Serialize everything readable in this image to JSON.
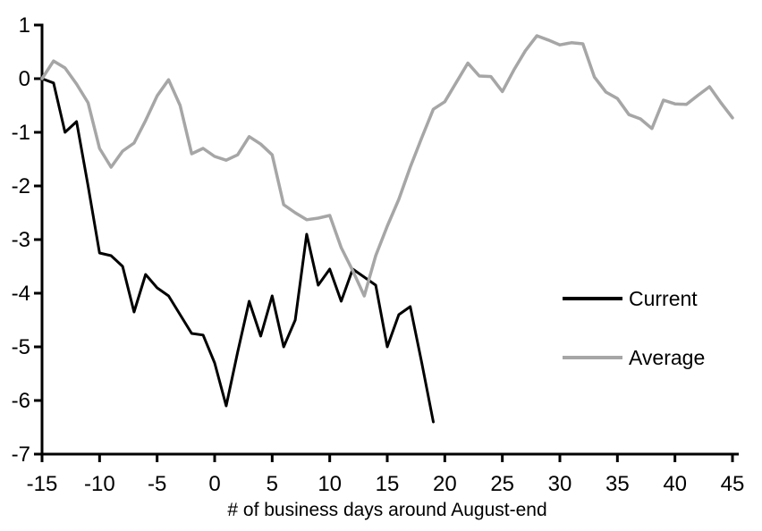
{
  "chart_data": {
    "type": "line",
    "title": "",
    "xlabel": "# of business days around August-end",
    "ylabel": "",
    "xlim": [
      -15,
      45
    ],
    "ylim": [
      -7,
      1
    ],
    "x_ticks": [
      -15,
      -10,
      -5,
      0,
      5,
      10,
      15,
      20,
      25,
      30,
      35,
      40,
      45
    ],
    "y_ticks": [
      1,
      0,
      -1,
      -2,
      -3,
      -4,
      -5,
      -6,
      -7
    ],
    "grid": false,
    "legend_position": "middle-right",
    "series": [
      {
        "name": "Current",
        "color": "#000000",
        "x": [
          -15,
          -14,
          -13,
          -12,
          -11,
          -10,
          -9,
          -8,
          -7,
          -6,
          -5,
          -4,
          -3,
          -2,
          -1,
          0,
          1,
          2,
          3,
          4,
          5,
          6,
          7,
          8,
          9,
          10,
          11,
          12,
          13,
          14,
          15,
          16,
          17,
          18,
          19
        ],
        "values": [
          0,
          -0.08,
          -1.0,
          -0.8,
          -2.0,
          -3.25,
          -3.3,
          -3.5,
          -4.35,
          -3.65,
          -3.9,
          -4.05,
          -4.4,
          -4.75,
          -4.78,
          -5.3,
          -6.1,
          -5.1,
          -4.15,
          -4.8,
          -4.05,
          -5.0,
          -4.5,
          -2.9,
          -3.85,
          -3.55,
          -4.15,
          -3.55,
          -3.7,
          -3.85,
          -5.0,
          -4.4,
          -4.25,
          -5.3,
          -6.4
        ]
      },
      {
        "name": "Average",
        "color": "#a6a6a6",
        "x": [
          -15,
          -14,
          -13,
          -12,
          -11,
          -10,
          -9,
          -8,
          -7,
          -6,
          -5,
          -4,
          -3,
          -2,
          -1,
          0,
          1,
          2,
          3,
          4,
          5,
          6,
          7,
          8,
          9,
          10,
          11,
          12,
          13,
          14,
          15,
          16,
          17,
          18,
          19,
          20,
          21,
          22,
          23,
          24,
          25,
          26,
          27,
          28,
          29,
          30,
          31,
          32,
          33,
          34,
          35,
          36,
          37,
          38,
          39,
          40,
          41,
          42,
          43,
          44,
          45
        ],
        "values": [
          0,
          0.33,
          0.2,
          -0.1,
          -0.45,
          -1.3,
          -1.65,
          -1.35,
          -1.2,
          -0.78,
          -0.32,
          -0.02,
          -0.5,
          -1.4,
          -1.3,
          -1.45,
          -1.52,
          -1.42,
          -1.08,
          -1.22,
          -1.42,
          -2.35,
          -2.5,
          -2.63,
          -2.6,
          -2.55,
          -3.15,
          -3.58,
          -4.05,
          -3.3,
          -2.75,
          -2.25,
          -1.65,
          -1.1,
          -0.57,
          -0.43,
          -0.07,
          0.29,
          0.05,
          0.04,
          -0.24,
          0.16,
          0.52,
          0.8,
          0.72,
          0.63,
          0.67,
          0.65,
          0.03,
          -0.25,
          -0.37,
          -0.67,
          -0.75,
          -0.93,
          -0.4,
          -0.47,
          -0.48,
          -0.31,
          -0.15,
          -0.45,
          -0.73
        ]
      }
    ]
  }
}
